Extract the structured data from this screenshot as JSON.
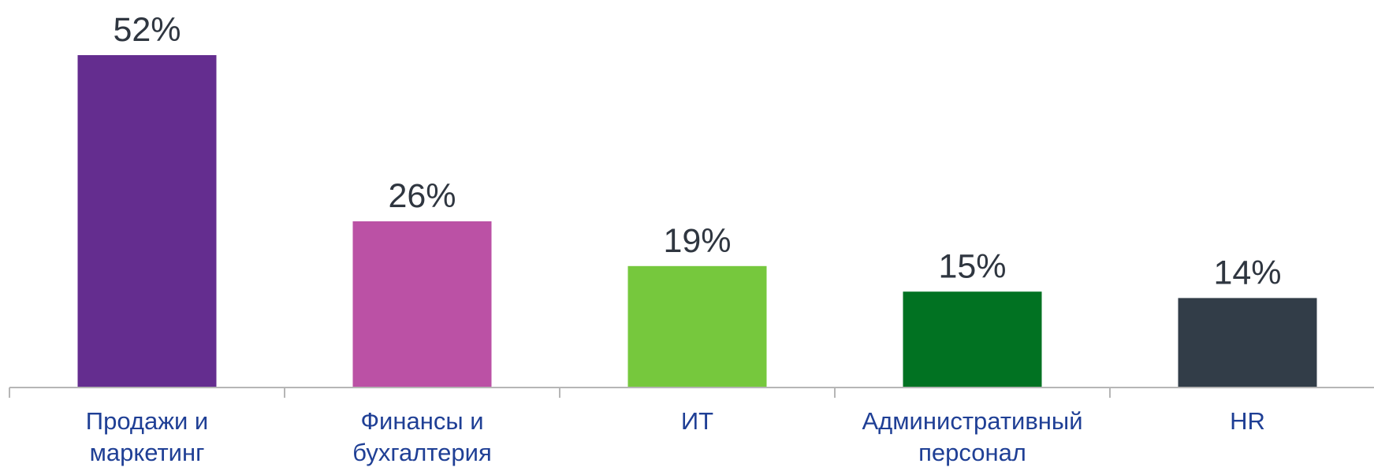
{
  "chart_data": {
    "type": "bar",
    "title": "",
    "xlabel": "",
    "ylabel": "",
    "ylim": [
      0,
      52
    ],
    "grid": false,
    "legend": "none",
    "categories": [
      [
        "Продажи и",
        "маркетинг"
      ],
      [
        "Финансы и",
        "бухгалтерия"
      ],
      [
        "ИТ"
      ],
      [
        "Административный",
        "персонал"
      ],
      [
        "HR"
      ]
    ],
    "values": [
      52,
      26,
      19,
      15,
      14
    ],
    "value_labels": [
      "52%",
      "26%",
      "19%",
      "15%",
      "14%"
    ],
    "colors": [
      "#642d8f",
      "#bb51a5",
      "#76c83d",
      "#017222",
      "#323d48"
    ],
    "axis_color": "#b6b6b6",
    "category_label_color": "#1f3f95",
    "value_label_color": "#2f3640"
  }
}
